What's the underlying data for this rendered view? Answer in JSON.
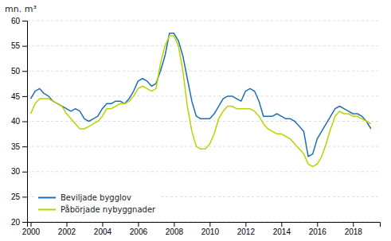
{
  "chart_data": {
    "type": "line",
    "title": "mn. m³",
    "x": [
      2000.0,
      2000.25,
      2000.5,
      2000.75,
      2001.0,
      2001.25,
      2001.5,
      2001.75,
      2002.0,
      2002.25,
      2002.5,
      2002.75,
      2003.0,
      2003.25,
      2003.5,
      2003.75,
      2004.0,
      2004.25,
      2004.5,
      2004.75,
      2005.0,
      2005.25,
      2005.5,
      2005.75,
      2006.0,
      2006.25,
      2006.5,
      2006.75,
      2007.0,
      2007.25,
      2007.5,
      2007.75,
      2008.0,
      2008.25,
      2008.5,
      2008.75,
      2009.0,
      2009.25,
      2009.5,
      2009.75,
      2010.0,
      2010.25,
      2010.5,
      2010.75,
      2011.0,
      2011.25,
      2011.5,
      2011.75,
      2012.0,
      2012.25,
      2012.5,
      2012.75,
      2013.0,
      2013.25,
      2013.5,
      2013.75,
      2014.0,
      2014.25,
      2014.5,
      2014.75,
      2015.0,
      2015.25,
      2015.5,
      2015.75,
      2016.0,
      2016.25,
      2016.5,
      2016.75,
      2017.0,
      2017.25,
      2017.5,
      2017.75,
      2018.0,
      2018.25,
      2018.5,
      2018.75,
      2019.0
    ],
    "series": [
      {
        "name": "Beviljade bygglov",
        "color": "#1f6eb5",
        "values": [
          44.5,
          46.0,
          46.5,
          45.5,
          45.0,
          44.0,
          43.5,
          43.0,
          42.5,
          42.0,
          42.5,
          42.0,
          40.5,
          40.0,
          40.5,
          41.0,
          42.5,
          43.5,
          43.5,
          44.0,
          44.0,
          43.5,
          44.5,
          46.0,
          48.0,
          48.5,
          48.0,
          47.0,
          47.5,
          50.0,
          53.0,
          57.5,
          57.5,
          56.0,
          53.0,
          48.5,
          44.0,
          41.0,
          40.5,
          40.5,
          40.5,
          41.5,
          43.0,
          44.5,
          45.0,
          45.0,
          44.5,
          44.0,
          46.0,
          46.5,
          46.0,
          44.0,
          41.0,
          41.0,
          41.0,
          41.5,
          41.0,
          40.5,
          40.5,
          40.0,
          39.0,
          38.0,
          33.0,
          33.5,
          36.5,
          38.0,
          39.5,
          41.0,
          42.5,
          43.0,
          42.5,
          42.0,
          41.5,
          41.5,
          41.0,
          40.0,
          38.5
        ]
      },
      {
        "name": "Påbörjade nybyggnader",
        "color": "#b8d400",
        "values": [
          41.5,
          43.5,
          44.5,
          44.5,
          44.5,
          44.0,
          43.5,
          43.0,
          41.5,
          40.5,
          39.5,
          38.5,
          38.5,
          39.0,
          39.5,
          40.0,
          41.0,
          42.5,
          42.5,
          43.0,
          43.5,
          43.5,
          44.0,
          45.0,
          46.5,
          47.0,
          46.5,
          46.0,
          46.5,
          51.5,
          55.0,
          57.0,
          57.0,
          55.0,
          50.0,
          43.0,
          38.0,
          35.0,
          34.5,
          34.5,
          35.5,
          37.5,
          40.5,
          42.0,
          43.0,
          43.0,
          42.5,
          42.5,
          42.5,
          42.5,
          42.0,
          41.0,
          39.5,
          38.5,
          38.0,
          37.5,
          37.5,
          37.0,
          36.5,
          35.5,
          34.5,
          33.5,
          31.5,
          31.0,
          31.5,
          33.0,
          35.5,
          38.5,
          41.0,
          42.0,
          41.5,
          41.5,
          41.0,
          41.0,
          40.5,
          40.0,
          39.5
        ]
      }
    ],
    "xlim": [
      1999.8,
      2019.5
    ],
    "xticks": [
      2000,
      2002,
      2004,
      2006,
      2008,
      2010,
      2012,
      2014,
      2016,
      2018
    ],
    "ylim": [
      20,
      60
    ],
    "yticks": [
      20,
      25,
      30,
      35,
      40,
      45,
      50,
      55,
      60
    ],
    "grid": "y",
    "legend": "lower left"
  }
}
